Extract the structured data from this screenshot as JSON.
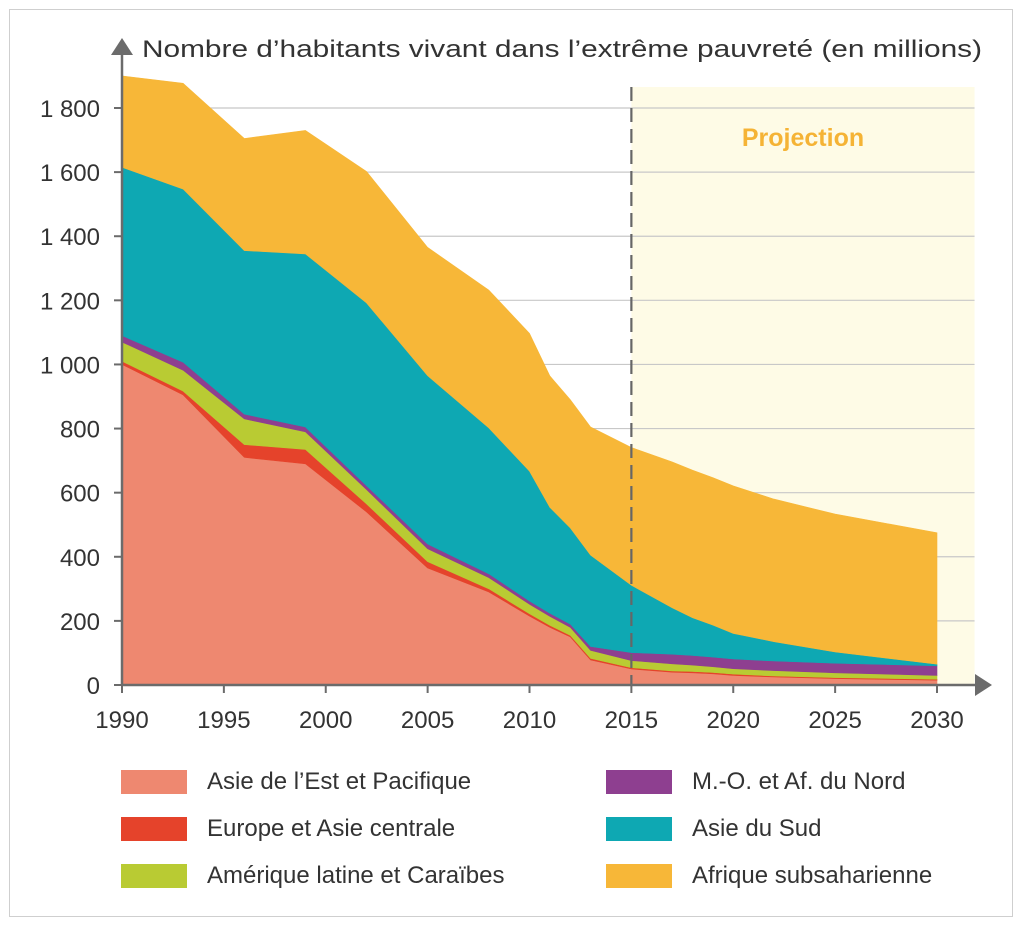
{
  "chart_data": {
    "type": "area",
    "stacked": true,
    "title": "Nombre d’habitants vivant dans l’extrême pauvreté (en millions)",
    "xlabel": "",
    "ylabel": "",
    "xlim": [
      1990,
      2032
    ],
    "ylim": [
      0,
      1900
    ],
    "x_ticks": [
      1990,
      1995,
      2000,
      2005,
      2010,
      2015,
      2020,
      2025,
      2030
    ],
    "y_ticks": [
      0,
      200,
      400,
      600,
      800,
      1000,
      1200,
      1400,
      1600,
      1800
    ],
    "y_tick_labels": [
      "0",
      "200",
      "400",
      "600",
      "800",
      "1 000",
      "1 200",
      "1 400",
      "1 600",
      "1 800"
    ],
    "projection": {
      "from": 2015,
      "to": 2031.5,
      "label": "Projection",
      "color": "#fefbe6",
      "label_color": "#f5b335",
      "line_color": "#666666"
    },
    "gridlines": true,
    "x": [
      1990,
      1993,
      1996,
      1999,
      2002,
      2005,
      2008,
      2010,
      2011,
      2012,
      2013,
      2015,
      2017,
      2018,
      2019,
      2020,
      2022,
      2025,
      2030
    ],
    "series": [
      {
        "name": "Asie de l’Est et Pacifique",
        "color": "#ee8870",
        "values": [
          1000,
          905,
          710,
          690,
          540,
          365,
          290,
          215,
          180,
          150,
          78,
          50,
          40,
          38,
          35,
          30,
          25,
          20,
          15
        ]
      },
      {
        "name": "Europe et Asie centrale",
        "color": "#e5432b",
        "values": [
          10,
          12,
          40,
          45,
          25,
          20,
          10,
          7,
          6,
          5,
          5,
          4,
          4,
          4,
          4,
          4,
          3,
          3,
          3
        ]
      },
      {
        "name": "Amérique latine et Caraïbes",
        "color": "#b9cb33",
        "values": [
          60,
          65,
          80,
          55,
          45,
          40,
          35,
          30,
          28,
          25,
          25,
          22,
          22,
          20,
          18,
          17,
          17,
          15,
          12
        ]
      },
      {
        "name": "M.-O. et Af. du Nord",
        "color": "#8e3f90",
        "values": [
          20,
          25,
          15,
          15,
          12,
          15,
          12,
          10,
          10,
          10,
          12,
          25,
          30,
          30,
          30,
          30,
          30,
          30,
          30
        ]
      },
      {
        "name": "Asie du Sud",
        "color": "#0ea8b3",
        "values": [
          525,
          540,
          510,
          540,
          570,
          525,
          455,
          405,
          330,
          300,
          285,
          210,
          145,
          118,
          100,
          80,
          60,
          35,
          5
        ]
      },
      {
        "name": "Afrique subsaharienne",
        "color": "#f7b738",
        "values": [
          285,
          330,
          350,
          385,
          410,
          400,
          430,
          430,
          410,
          400,
          400,
          430,
          455,
          460,
          460,
          460,
          445,
          430,
          410
        ]
      }
    ]
  }
}
